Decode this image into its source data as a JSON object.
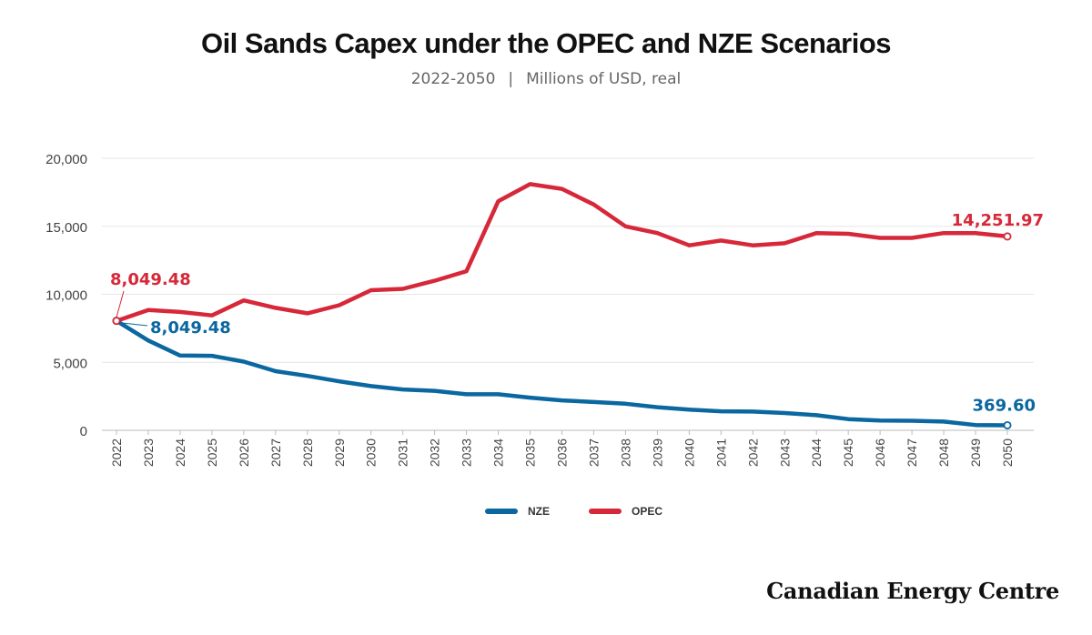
{
  "header": {
    "title": "Oil Sands Capex under the OPEC and NZE Scenarios",
    "subtitle_range": "2022-2050",
    "subtitle_separator": "|",
    "subtitle_units": "Millions of USD, real"
  },
  "brand": {
    "logo_text": "Canadian Energy Centre"
  },
  "colors": {
    "NZE": "#0a67a0",
    "OPEC": "#d62839",
    "grid": "#e6e6e6",
    "axis_text": "#444444"
  },
  "chart_data": {
    "type": "line",
    "x": [
      2022,
      2023,
      2024,
      2025,
      2026,
      2027,
      2028,
      2029,
      2030,
      2031,
      2032,
      2033,
      2034,
      2035,
      2036,
      2037,
      2038,
      2039,
      2040,
      2041,
      2042,
      2043,
      2044,
      2045,
      2046,
      2047,
      2048,
      2049,
      2050
    ],
    "ylim": [
      0,
      20000
    ],
    "yticks": [
      0,
      5000,
      10000,
      15000,
      20000
    ],
    "ytick_labels": [
      "0",
      "5,000",
      "10,000",
      "15,000",
      "20,000"
    ],
    "grid": true,
    "legend_position": "bottom-center",
    "series": [
      {
        "name": "NZE",
        "values": [
          8049.48,
          6600,
          5500,
          5480,
          5050,
          4350,
          4000,
          3600,
          3250,
          3000,
          2900,
          2650,
          2650,
          2400,
          2200,
          2080,
          1950,
          1700,
          1520,
          1400,
          1380,
          1270,
          1110,
          820,
          720,
          700,
          640,
          390,
          369.6
        ]
      },
      {
        "name": "OPEC",
        "values": [
          8049.48,
          8850,
          8700,
          8450,
          9550,
          9000,
          8600,
          9200,
          10300,
          10400,
          11000,
          11700,
          16850,
          18100,
          17750,
          16600,
          15000,
          14500,
          13600,
          13950,
          13600,
          13750,
          14500,
          14450,
          14150,
          14150,
          14500,
          14500,
          14251.97
        ]
      }
    ],
    "annotations": [
      {
        "series": "OPEC",
        "x": 2022,
        "text": "8,049.48"
      },
      {
        "series": "NZE",
        "x": 2022,
        "text": "8,049.48"
      },
      {
        "series": "OPEC",
        "x": 2050,
        "text": "14,251.97"
      },
      {
        "series": "NZE",
        "x": 2050,
        "text": "369.60"
      }
    ]
  }
}
